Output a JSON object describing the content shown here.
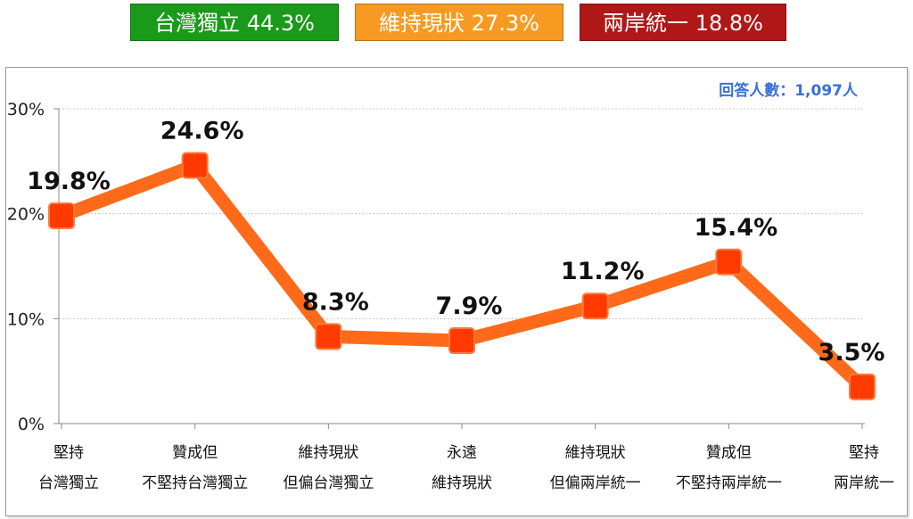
{
  "legend_badges": [
    {
      "label": "台灣獨立 44.3%",
      "color": "#1a9a1a"
    },
    {
      "label": "維持現狀 27.3%",
      "color": "#f89a22"
    },
    {
      "label": "兩岸統一 18.8%",
      "color": "#b01818"
    }
  ],
  "respondents_note": "回答人數：1,097人",
  "chart_data": {
    "type": "line",
    "categories": [
      [
        "堅持",
        "台灣獨立"
      ],
      [
        "贊成但",
        "不堅持台灣獨立"
      ],
      [
        "維持現狀",
        "但偏台灣獨立"
      ],
      [
        "永遠",
        "維持現狀"
      ],
      [
        "維持現狀",
        "但偏兩岸統一"
      ],
      [
        "贊成但",
        "不堅持兩岸統一"
      ],
      [
        "堅持",
        "兩岸統一"
      ]
    ],
    "values": [
      19.8,
      24.6,
      8.3,
      7.9,
      11.2,
      15.4,
      3.5
    ],
    "value_labels": [
      "19.8%",
      "24.6%",
      "8.3%",
      "7.9%",
      "11.2%",
      "15.4%",
      "3.5%"
    ],
    "ylim": [
      0,
      30
    ],
    "yticks": [
      0,
      10,
      20,
      30
    ],
    "ytick_labels": [
      "0%",
      "10%",
      "20%",
      "30%"
    ],
    "line_color": "#ff6a1a",
    "marker_color": "#ff3a00",
    "grid": true
  }
}
